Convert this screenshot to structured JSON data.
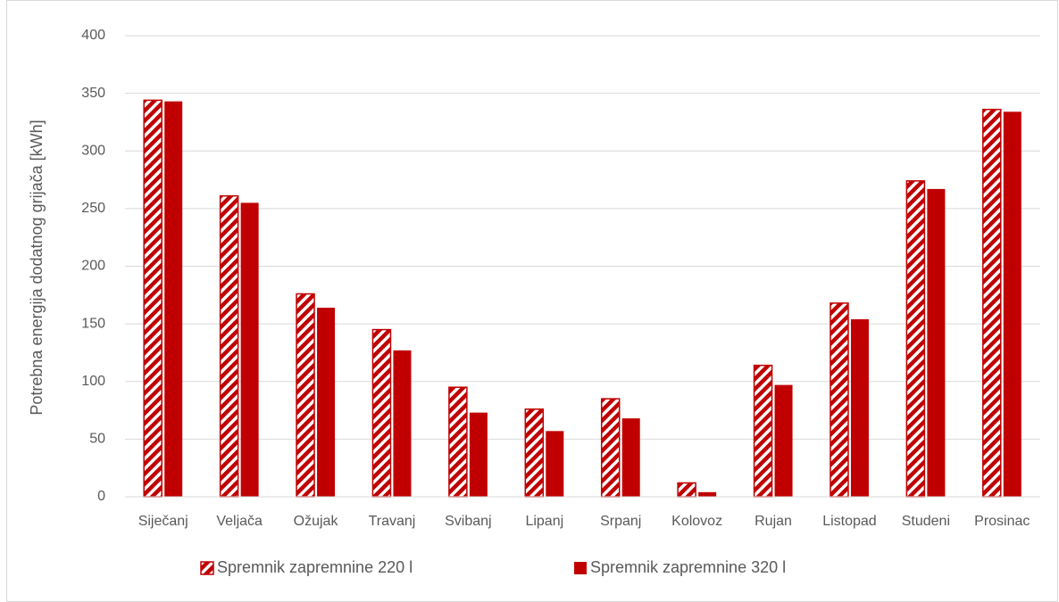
{
  "chart_data": {
    "type": "bar",
    "y_label": "Potrebna energija dodatnog grijača [kWh]",
    "categories": [
      "Siječanj",
      "Veljača",
      "Ožujak",
      "Travanj",
      "Svibanj",
      "Lipanj",
      "Srpanj",
      "Kolovoz",
      "Rujan",
      "Listopad",
      "Studeni",
      "Prosinac"
    ],
    "series": [
      {
        "name": "Spremnik zapremnine 220 l",
        "color": "#c00000",
        "pattern": "hatch",
        "values": [
          344,
          261,
          176,
          145,
          95,
          76,
          85,
          12,
          114,
          168,
          274,
          336
        ]
      },
      {
        "name": "Spremnik zapremnine 320 l",
        "color": "#c00000",
        "pattern": "solid",
        "values": [
          343,
          255,
          164,
          127,
          73,
          57,
          68,
          4,
          97,
          154,
          267,
          334
        ]
      }
    ],
    "ylim": [
      0,
      400
    ],
    "yticks": [
      0,
      50,
      100,
      150,
      200,
      250,
      300,
      350,
      400
    ],
    "grid": true,
    "legend": "bottom"
  }
}
